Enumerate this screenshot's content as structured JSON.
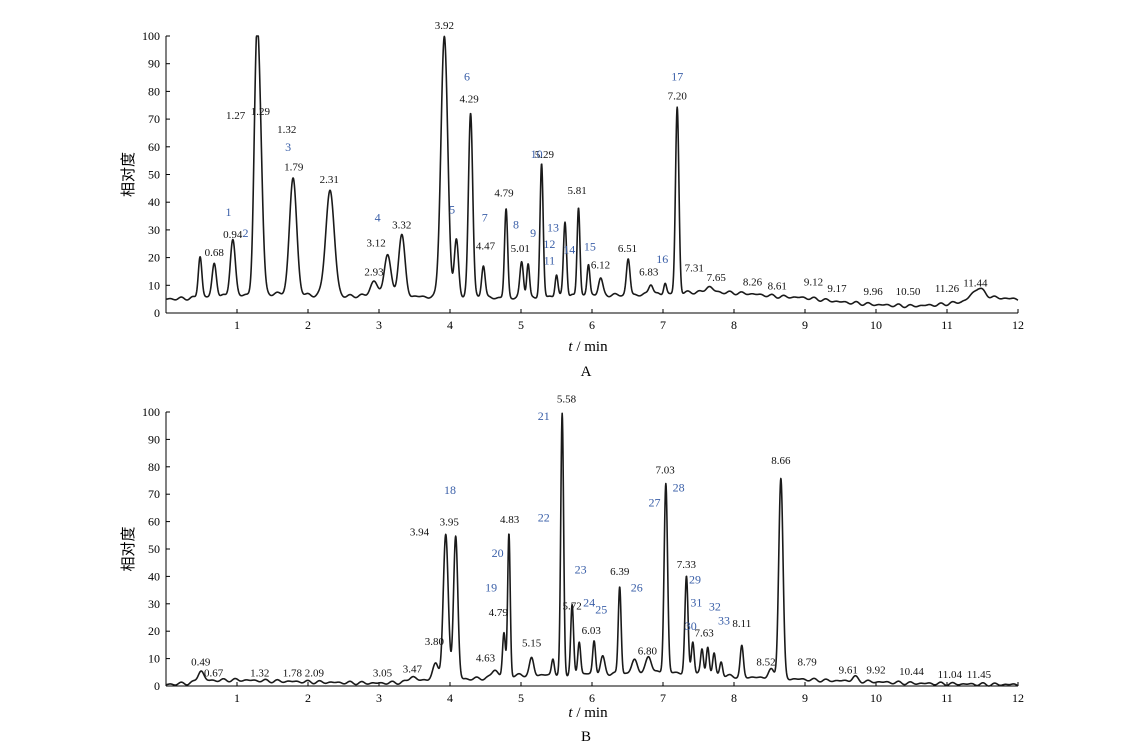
{
  "chart_data": [
    {
      "type": "line",
      "title": "A",
      "xlabel_var": "t",
      "xlabel_unit": " / min",
      "ylabel": "相对度",
      "xlim": [
        0,
        12
      ],
      "ylim": [
        0,
        100
      ],
      "xticks": [
        1,
        2,
        3,
        4,
        5,
        6,
        7,
        8,
        9,
        10,
        11,
        12
      ],
      "yticks": [
        0,
        10,
        20,
        30,
        40,
        50,
        60,
        70,
        80,
        90,
        100
      ],
      "baseline": [
        [
          0,
          5
        ],
        [
          0.3,
          5.3
        ],
        [
          0.6,
          5.8
        ],
        [
          1.0,
          6.5
        ],
        [
          1.6,
          7
        ],
        [
          2.0,
          6.5
        ],
        [
          2.5,
          6
        ],
        [
          3.0,
          6.5
        ],
        [
          3.5,
          6
        ],
        [
          4.0,
          5.5
        ],
        [
          4.6,
          5.5
        ],
        [
          5.0,
          5.5
        ],
        [
          5.5,
          6
        ],
        [
          6.0,
          6.5
        ],
        [
          6.5,
          6.5
        ],
        [
          7.0,
          6.8
        ],
        [
          7.4,
          7.5
        ],
        [
          7.8,
          7.5
        ],
        [
          8.2,
          7
        ],
        [
          8.6,
          6
        ],
        [
          9.0,
          5.5
        ],
        [
          9.5,
          4
        ],
        [
          10.0,
          3
        ],
        [
          10.5,
          2.5
        ],
        [
          10.9,
          3
        ],
        [
          11.2,
          4
        ],
        [
          11.44,
          6
        ],
        [
          11.7,
          5.5
        ],
        [
          12,
          5
        ]
      ],
      "peaks": [
        {
          "t": 0.48,
          "h": 15,
          "w": 0.025
        },
        {
          "t": 0.68,
          "h": 12,
          "w": 0.03
        },
        {
          "t": 0.94,
          "h": 20,
          "w": 0.035
        },
        {
          "t": 1.27,
          "h": 66,
          "w": 0.035
        },
        {
          "t": 1.32,
          "h": 55,
          "w": 0.04
        },
        {
          "t": 1.79,
          "h": 42,
          "w": 0.05
        },
        {
          "t": 2.31,
          "h": 38,
          "w": 0.06
        },
        {
          "t": 2.93,
          "h": 5,
          "w": 0.05
        },
        {
          "t": 3.12,
          "h": 15,
          "w": 0.045
        },
        {
          "t": 3.32,
          "h": 22,
          "w": 0.045
        },
        {
          "t": 3.92,
          "h": 94,
          "w": 0.048
        },
        {
          "t": 4.09,
          "h": 21,
          "w": 0.03
        },
        {
          "t": 4.29,
          "h": 67,
          "w": 0.03
        },
        {
          "t": 4.47,
          "h": 12,
          "w": 0.025
        },
        {
          "t": 4.79,
          "h": 32,
          "w": 0.022
        },
        {
          "t": 5.01,
          "h": 13,
          "w": 0.025
        },
        {
          "t": 5.1,
          "h": 12,
          "w": 0.02
        },
        {
          "t": 5.29,
          "h": 48,
          "w": 0.022
        },
        {
          "t": 5.5,
          "h": 8,
          "w": 0.02
        },
        {
          "t": 5.62,
          "h": 27,
          "w": 0.022
        },
        {
          "t": 5.81,
          "h": 32,
          "w": 0.02
        },
        {
          "t": 5.95,
          "h": 11,
          "w": 0.02
        },
        {
          "t": 6.12,
          "h": 6,
          "w": 0.03
        },
        {
          "t": 6.51,
          "h": 13,
          "w": 0.025
        },
        {
          "t": 6.83,
          "h": 4,
          "w": 0.03
        },
        {
          "t": 7.03,
          "h": 4,
          "w": 0.02
        },
        {
          "t": 7.2,
          "h": 67,
          "w": 0.024
        },
        {
          "t": 7.65,
          "h": 2,
          "w": 0.05
        },
        {
          "t": 11.44,
          "h": 3,
          "w": 0.08
        }
      ],
      "peak_labels": [
        {
          "text": "0.68",
          "t": 0.68,
          "y": 20.5
        },
        {
          "text": "0.94",
          "t": 0.94,
          "y": 27
        },
        {
          "text": "1.27",
          "t": 0.98,
          "y": 70
        },
        {
          "text": "1.29",
          "t": 1.33,
          "y": 71.5
        },
        {
          "text": "1.32",
          "t": 1.7,
          "y": 65
        },
        {
          "text": "1.79",
          "t": 1.8,
          "y": 51.5
        },
        {
          "text": "2.31",
          "t": 2.3,
          "y": 47
        },
        {
          "text": "2.93",
          "t": 2.93,
          "y": 13.5
        },
        {
          "text": "3.12",
          "t": 2.96,
          "y": 24
        },
        {
          "text": "3.32",
          "t": 3.32,
          "y": 30.5
        },
        {
          "text": "3.92",
          "t": 3.92,
          "y": 102.5
        },
        {
          "text": "4.29",
          "t": 4.27,
          "y": 76
        },
        {
          "text": "4.47",
          "t": 4.5,
          "y": 23
        },
        {
          "text": "4.79",
          "t": 4.76,
          "y": 42
        },
        {
          "text": "5.01",
          "t": 4.99,
          "y": 22
        },
        {
          "text": "5.29",
          "t": 5.33,
          "y": 56
        },
        {
          "text": "5.81",
          "t": 5.79,
          "y": 43
        },
        {
          "text": "6.12",
          "t": 6.12,
          "y": 16
        },
        {
          "text": "6.51",
          "t": 6.5,
          "y": 22
        },
        {
          "text": "6.83",
          "t": 6.8,
          "y": 13.5
        },
        {
          "text": "7.20",
          "t": 7.2,
          "y": 77
        },
        {
          "text": "7.31",
          "t": 7.44,
          "y": 15
        },
        {
          "text": "7.65",
          "t": 7.75,
          "y": 11.5
        },
        {
          "text": "8.26",
          "t": 8.26,
          "y": 10
        },
        {
          "text": "8.61",
          "t": 8.61,
          "y": 8.5
        },
        {
          "text": "9.12",
          "t": 9.12,
          "y": 10
        },
        {
          "text": "9.17",
          "t": 9.45,
          "y": 7.5
        },
        {
          "text": "9.96",
          "t": 9.96,
          "y": 6.5
        },
        {
          "text": "10.50",
          "t": 10.45,
          "y": 6.5
        },
        {
          "text": "11.26",
          "t": 11.0,
          "y": 7.5
        },
        {
          "text": "11.44",
          "t": 11.4,
          "y": 9.5
        }
      ],
      "compound_labels": [
        {
          "text": "1",
          "t": 0.88,
          "y": 35
        },
        {
          "text": "2",
          "t": 1.12,
          "y": 27.5
        },
        {
          "text": "3",
          "t": 1.72,
          "y": 58.5
        },
        {
          "text": "4",
          "t": 2.98,
          "y": 33
        },
        {
          "text": "5",
          "t": 4.03,
          "y": 36
        },
        {
          "text": "6",
          "t": 4.24,
          "y": 84
        },
        {
          "text": "7",
          "t": 4.49,
          "y": 33
        },
        {
          "text": "8",
          "t": 4.93,
          "y": 30.5
        },
        {
          "text": "9",
          "t": 5.17,
          "y": 27.5
        },
        {
          "text": "10",
          "t": 5.22,
          "y": 56
        },
        {
          "text": "11",
          "t": 5.4,
          "y": 17.5
        },
        {
          "text": "12",
          "t": 5.4,
          "y": 23.5
        },
        {
          "text": "13",
          "t": 5.45,
          "y": 29.5
        },
        {
          "text": "14",
          "t": 5.68,
          "y": 21.5
        },
        {
          "text": "15",
          "t": 5.97,
          "y": 22.5
        },
        {
          "text": "16",
          "t": 6.99,
          "y": 18
        },
        {
          "text": "17",
          "t": 7.2,
          "y": 84
        }
      ]
    },
    {
      "type": "line",
      "title": "B",
      "xlabel_var": "t",
      "xlabel_unit": " / min",
      "ylabel": "相对度",
      "xlim": [
        0,
        12
      ],
      "ylim": [
        0,
        100
      ],
      "xticks": [
        1,
        2,
        3,
        4,
        5,
        6,
        7,
        8,
        9,
        10,
        11,
        12
      ],
      "yticks": [
        0,
        10,
        20,
        30,
        40,
        50,
        60,
        70,
        80,
        90,
        100
      ],
      "baseline": [
        [
          0,
          0.5
        ],
        [
          0.3,
          1
        ],
        [
          0.45,
          1.5
        ],
        [
          0.6,
          2
        ],
        [
          1.0,
          2.2
        ],
        [
          1.5,
          1.8
        ],
        [
          2.0,
          1.5
        ],
        [
          2.5,
          1.2
        ],
        [
          3.0,
          1
        ],
        [
          3.5,
          1.5
        ],
        [
          3.8,
          3
        ],
        [
          4.2,
          2.5
        ],
        [
          4.6,
          3
        ],
        [
          5.0,
          4
        ],
        [
          5.5,
          4
        ],
        [
          6.0,
          4.5
        ],
        [
          6.5,
          4.5
        ],
        [
          7.0,
          5
        ],
        [
          7.5,
          4.5
        ],
        [
          8.0,
          3.5
        ],
        [
          8.4,
          3
        ],
        [
          8.9,
          2.5
        ],
        [
          9.3,
          2
        ],
        [
          9.7,
          1.8
        ],
        [
          10.0,
          1.5
        ],
        [
          10.5,
          1
        ],
        [
          11.0,
          0.8
        ],
        [
          11.5,
          0.6
        ],
        [
          12,
          0.5
        ]
      ],
      "peaks": [
        {
          "t": 0.49,
          "h": 4,
          "w": 0.04
        },
        {
          "t": 3.47,
          "h": 2,
          "w": 0.05
        },
        {
          "t": 3.8,
          "h": 5,
          "w": 0.04
        },
        {
          "t": 3.94,
          "h": 52,
          "w": 0.035
        },
        {
          "t": 4.08,
          "h": 52,
          "w": 0.03
        },
        {
          "t": 4.63,
          "h": 3,
          "w": 0.04
        },
        {
          "t": 4.76,
          "h": 16,
          "w": 0.02
        },
        {
          "t": 4.83,
          "h": 52,
          "w": 0.018
        },
        {
          "t": 5.15,
          "h": 6,
          "w": 0.03
        },
        {
          "t": 5.45,
          "h": 6,
          "w": 0.02
        },
        {
          "t": 5.58,
          "h": 95,
          "w": 0.02
        },
        {
          "t": 5.72,
          "h": 25,
          "w": 0.02
        },
        {
          "t": 5.82,
          "h": 12,
          "w": 0.02
        },
        {
          "t": 6.03,
          "h": 12,
          "w": 0.02
        },
        {
          "t": 6.15,
          "h": 6,
          "w": 0.03
        },
        {
          "t": 6.39,
          "h": 32,
          "w": 0.02
        },
        {
          "t": 6.6,
          "h": 5,
          "w": 0.04
        },
        {
          "t": 6.8,
          "h": 6,
          "w": 0.04
        },
        {
          "t": 7.04,
          "h": 69,
          "w": 0.024
        },
        {
          "t": 7.33,
          "h": 35,
          "w": 0.022
        },
        {
          "t": 7.42,
          "h": 12,
          "w": 0.02
        },
        {
          "t": 7.55,
          "h": 9,
          "w": 0.02
        },
        {
          "t": 7.63,
          "h": 10,
          "w": 0.02
        },
        {
          "t": 7.72,
          "h": 8,
          "w": 0.02
        },
        {
          "t": 7.82,
          "h": 5,
          "w": 0.02
        },
        {
          "t": 8.11,
          "h": 11,
          "w": 0.022
        },
        {
          "t": 8.52,
          "h": 3,
          "w": 0.04
        },
        {
          "t": 8.66,
          "h": 73,
          "w": 0.03
        },
        {
          "t": 9.7,
          "h": 1.5,
          "w": 0.04
        }
      ],
      "peak_labels": [
        {
          "text": "0.49",
          "t": 0.49,
          "y": 7.5
        },
        {
          "text": "0.67",
          "t": 0.67,
          "y": 3.5
        },
        {
          "text": "1.32",
          "t": 1.32,
          "y": 3.5
        },
        {
          "text": "1.78",
          "t": 1.78,
          "y": 3.5
        },
        {
          "text": "2.09",
          "t": 2.09,
          "y": 3.5
        },
        {
          "text": "3.05",
          "t": 3.05,
          "y": 3.5
        },
        {
          "text": "3.47",
          "t": 3.47,
          "y": 5
        },
        {
          "text": "3.80",
          "t": 3.78,
          "y": 15
        },
        {
          "text": "3.94",
          "t": 3.57,
          "y": 55
        },
        {
          "text": "3.95",
          "t": 3.99,
          "y": 58.5
        },
        {
          "text": "4.63",
          "t": 4.5,
          "y": 9
        },
        {
          "text": "4.79",
          "t": 4.68,
          "y": 25.5
        },
        {
          "text": "4.83",
          "t": 4.84,
          "y": 59.5
        },
        {
          "text": "5.15",
          "t": 5.15,
          "y": 14.5
        },
        {
          "text": "5.58",
          "t": 5.64,
          "y": 103.5
        },
        {
          "text": "5.72",
          "t": 5.72,
          "y": 28
        },
        {
          "text": "6.03",
          "t": 5.99,
          "y": 19
        },
        {
          "text": "6.39",
          "t": 6.39,
          "y": 40.5
        },
        {
          "text": "6.80",
          "t": 6.78,
          "y": 11.5
        },
        {
          "text": "7.03",
          "t": 7.03,
          "y": 77.5
        },
        {
          "text": "7.33",
          "t": 7.33,
          "y": 43
        },
        {
          "text": "7.63",
          "t": 7.58,
          "y": 18
        },
        {
          "text": "8.11",
          "t": 8.11,
          "y": 21.5
        },
        {
          "text": "8.52",
          "t": 8.45,
          "y": 7.5
        },
        {
          "text": "8.66",
          "t": 8.66,
          "y": 81
        },
        {
          "text": "8.79",
          "t": 9.03,
          "y": 7.5
        },
        {
          "text": "9.61",
          "t": 9.61,
          "y": 4.5
        },
        {
          "text": "9.92",
          "t": 10.0,
          "y": 4.5
        },
        {
          "text": "10.44",
          "t": 10.5,
          "y": 4
        },
        {
          "text": "11.04",
          "t": 11.04,
          "y": 3
        },
        {
          "text": "11.45",
          "t": 11.45,
          "y": 3
        }
      ],
      "compound_labels": [
        {
          "text": "18",
          "t": 4.0,
          "y": 70
        },
        {
          "text": "19",
          "t": 4.58,
          "y": 34.5
        },
        {
          "text": "20",
          "t": 4.67,
          "y": 47
        },
        {
          "text": "21",
          "t": 5.32,
          "y": 97
        },
        {
          "text": "22",
          "t": 5.32,
          "y": 60
        },
        {
          "text": "23",
          "t": 5.84,
          "y": 41
        },
        {
          "text": "24",
          "t": 5.96,
          "y": 29
        },
        {
          "text": "25",
          "t": 6.13,
          "y": 26.5
        },
        {
          "text": "26",
          "t": 6.63,
          "y": 34.5
        },
        {
          "text": "27",
          "t": 6.88,
          "y": 65.5
        },
        {
          "text": "28",
          "t": 7.22,
          "y": 71
        },
        {
          "text": "29",
          "t": 7.45,
          "y": 37.5
        },
        {
          "text": "30",
          "t": 7.39,
          "y": 20.5
        },
        {
          "text": "31",
          "t": 7.47,
          "y": 29
        },
        {
          "text": "32",
          "t": 7.73,
          "y": 27.5
        },
        {
          "text": "33",
          "t": 7.86,
          "y": 22.5
        }
      ]
    }
  ],
  "colors": {
    "trace": "#1a1a1a",
    "axis": "#000000",
    "peak_label": "#111111",
    "compound_label": "#3a5fa8"
  }
}
